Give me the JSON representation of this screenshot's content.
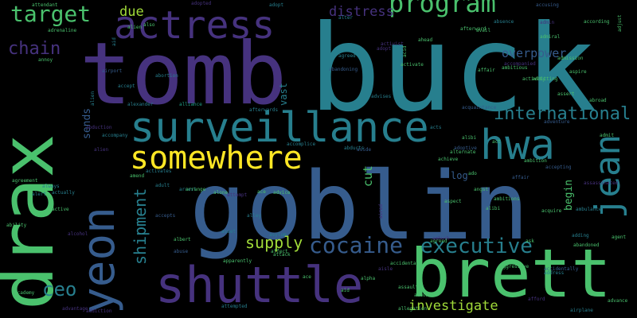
{
  "background": "#000000",
  "palette": [
    "#440154",
    "#46327e",
    "#365c8d",
    "#277f8e",
    "#1fa187",
    "#4ac16d",
    "#a0da39",
    "#fde725"
  ],
  "words": [
    {
      "text": "buck",
      "color": "#277f8e"
    },
    {
      "text": "tomb",
      "color": "#46327e"
    },
    {
      "text": "goblin",
      "color": "#365c8d"
    },
    {
      "text": "drax",
      "color": "#4ac16d"
    },
    {
      "text": "brett",
      "color": "#4ac16d"
    },
    {
      "text": "shuttle",
      "color": "#46327e"
    },
    {
      "text": "surveillance",
      "color": "#277f8e"
    },
    {
      "text": "yeon",
      "color": "#365c8d"
    },
    {
      "text": "actress",
      "color": "#46327e"
    },
    {
      "text": "hwa",
      "color": "#277f8e"
    },
    {
      "text": "jean",
      "color": "#277f8e"
    },
    {
      "text": "somewhere",
      "color": "#fde725"
    },
    {
      "text": "program",
      "color": "#4ac16d"
    },
    {
      "text": "target",
      "color": "#4ac16d"
    },
    {
      "text": "international",
      "color": "#277f8e"
    },
    {
      "text": "executive",
      "color": "#277f8e"
    },
    {
      "text": "cocaine",
      "color": "#365c8d"
    },
    {
      "text": "supply",
      "color": "#a0da39"
    },
    {
      "text": "chain",
      "color": "#46327e"
    },
    {
      "text": "ceo",
      "color": "#277f8e"
    },
    {
      "text": "shipment",
      "color": "#277f8e"
    },
    {
      "text": "investigate",
      "color": "#a0da39"
    },
    {
      "text": "overpower",
      "color": "#365c8d"
    },
    {
      "text": "distress",
      "color": "#46327e"
    },
    {
      "text": "due",
      "color": "#a0da39"
    },
    {
      "text": "cut",
      "color": "#4ac16d"
    },
    {
      "text": "sends",
      "color": "#365c8d"
    },
    {
      "text": "begin",
      "color": "#4ac16d"
    },
    {
      "text": "log",
      "color": "#365c8d"
    },
    {
      "text": "vast",
      "color": "#277f8e"
    },
    {
      "text": "alien",
      "color": "#277f8e"
    },
    {
      "text": "absence",
      "color": "#277f8e"
    },
    {
      "text": "ambulance",
      "color": "#277f8e"
    },
    {
      "text": "acquaintance",
      "color": "#365c8d"
    },
    {
      "text": "activates",
      "color": "#277f8e"
    },
    {
      "text": "afterwards",
      "color": "#277f8e"
    },
    {
      "text": "accompany",
      "color": "#277f8e"
    },
    {
      "text": "alliance",
      "color": "#1fa187"
    },
    {
      "text": "aggressive",
      "color": "#4ac16d"
    },
    {
      "text": "activist",
      "color": "#46327e"
    },
    {
      "text": "adopt",
      "color": "#277f8e"
    },
    {
      "text": "airport",
      "color": "#365c8d"
    },
    {
      "text": "advice",
      "color": "#4ac16d"
    },
    {
      "text": "agent",
      "color": "#4ac16d"
    },
    {
      "text": "academy",
      "color": "#4ac16d"
    },
    {
      "text": "acquire",
      "color": "#4ac16d"
    },
    {
      "text": "accusing",
      "color": "#365c8d"
    },
    {
      "text": "adopted",
      "color": "#46327e"
    },
    {
      "text": "achieve",
      "color": "#4ac16d"
    },
    {
      "text": "alpha",
      "color": "#4ac16d"
    },
    {
      "text": "advises",
      "color": "#277f8e"
    },
    {
      "text": "attack",
      "color": "#4ac16d"
    },
    {
      "text": "alone",
      "color": "#4ac16d"
    },
    {
      "text": "ahead",
      "color": "#4ac16d"
    },
    {
      "text": "abuse",
      "color": "#365c8d"
    },
    {
      "text": "activity",
      "color": "#4ac16d"
    },
    {
      "text": "alcohol",
      "color": "#46327e"
    },
    {
      "text": "admitting",
      "color": "#4ac16d"
    },
    {
      "text": "agreement",
      "color": "#4ac16d"
    },
    {
      "text": "ambition",
      "color": "#4ac16d"
    },
    {
      "text": "accepting",
      "color": "#365c8d"
    },
    {
      "text": "according",
      "color": "#4ac16d"
    },
    {
      "text": "abducts",
      "color": "#277f8e"
    },
    {
      "text": "alert",
      "color": "#277f8e"
    },
    {
      "text": "adding",
      "color": "#277f8e"
    },
    {
      "text": "address",
      "color": "#277f8e"
    },
    {
      "text": "alternate",
      "color": "#4ac16d"
    },
    {
      "text": "afford",
      "color": "#46327e"
    },
    {
      "text": "abandoning",
      "color": "#365c8d"
    },
    {
      "text": "activate",
      "color": "#4ac16d"
    },
    {
      "text": "aired",
      "color": "#46327e"
    },
    {
      "text": "adoptive",
      "color": "#365c8d"
    },
    {
      "text": "ace",
      "color": "#4ac16d"
    },
    {
      "text": "alien",
      "color": "#46327e"
    },
    {
      "text": "act",
      "color": "#4ac16d"
    },
    {
      "text": "alexander",
      "color": "#277f8e"
    },
    {
      "text": "accept",
      "color": "#277f8e"
    },
    {
      "text": "aid",
      "color": "#277f8e"
    },
    {
      "text": "aside",
      "color": "#365c8d"
    },
    {
      "text": "advance",
      "color": "#4ac16d"
    },
    {
      "text": "always",
      "color": "#277f8e"
    },
    {
      "text": "admit",
      "color": "#4ac16d"
    },
    {
      "text": "ability",
      "color": "#4ac16d"
    },
    {
      "text": "accompanied",
      "color": "#46327e"
    },
    {
      "text": "airplane",
      "color": "#277f8e"
    },
    {
      "text": "agreed",
      "color": "#277f8e"
    },
    {
      "text": "alibi",
      "color": "#4ac16d"
    },
    {
      "text": "alter",
      "color": "#277f8e"
    },
    {
      "text": "adult",
      "color": "#277f8e"
    },
    {
      "text": "alley",
      "color": "#277f8e"
    },
    {
      "text": "aspect",
      "color": "#4ac16d"
    },
    {
      "text": "acts",
      "color": "#277f8e"
    },
    {
      "text": "active",
      "color": "#4ac16d"
    },
    {
      "text": "asset",
      "color": "#277f8e"
    },
    {
      "text": "ambitious",
      "color": "#4ac16d"
    },
    {
      "text": "aisle",
      "color": "#46327e"
    },
    {
      "text": "accomplice",
      "color": "#277f8e"
    },
    {
      "text": "asylum",
      "color": "#277f8e"
    },
    {
      "text": "accepts",
      "color": "#365c8d"
    },
    {
      "text": "admin",
      "color": "#46327e"
    },
    {
      "text": "affair",
      "color": "#365c8d"
    },
    {
      "text": "actually",
      "color": "#277f8e"
    },
    {
      "text": "arrest",
      "color": "#277f8e"
    },
    {
      "text": "albert",
      "color": "#4ac16d"
    },
    {
      "text": "attempt",
      "color": "#46327e"
    },
    {
      "text": "adventure",
      "color": "#365c8d"
    },
    {
      "text": "acid",
      "color": "#4ac16d"
    },
    {
      "text": "assassinated",
      "color": "#46327e"
    },
    {
      "text": "ambush",
      "color": "#46327e"
    },
    {
      "text": "abortion",
      "color": "#277f8e"
    },
    {
      "text": "accidentally",
      "color": "#365c8d"
    },
    {
      "text": "addiction",
      "color": "#46327e"
    },
    {
      "text": "advantage",
      "color": "#46327e"
    },
    {
      "text": "abduction",
      "color": "#46327e"
    },
    {
      "text": "attempted",
      "color": "#277f8e"
    },
    {
      "text": "also",
      "color": "#4ac16d"
    },
    {
      "text": "affect",
      "color": "#4ac16d"
    },
    {
      "text": "afterward",
      "color": "#4ac16d"
    },
    {
      "text": "arrange",
      "color": "#4ac16d"
    },
    {
      "text": "amend",
      "color": "#4ac16d"
    },
    {
      "text": "admission",
      "color": "#4ac16d"
    },
    {
      "text": "avail",
      "color": "#4ac16d"
    },
    {
      "text": "annoy",
      "color": "#4ac16d"
    },
    {
      "text": "adopt",
      "color": "#46327e"
    },
    {
      "text": "attendant",
      "color": "#4ac16d"
    },
    {
      "text": "aspire",
      "color": "#4ac16d"
    },
    {
      "text": "alibi",
      "color": "#4ac16d"
    },
    {
      "text": "angst",
      "color": "#4ac16d"
    },
    {
      "text": "allegation",
      "color": "#4ac16d"
    },
    {
      "text": "aid",
      "color": "#4ac16d"
    },
    {
      "text": "accidental",
      "color": "#4ac16d"
    },
    {
      "text": "ambitions",
      "color": "#4ac16d"
    },
    {
      "text": "adjust",
      "color": "#4ac16d"
    },
    {
      "text": "admiral",
      "color": "#4ac16d"
    },
    {
      "text": "affair",
      "color": "#4ac16d"
    },
    {
      "text": "assaults",
      "color": "#4ac16d"
    },
    {
      "text": "allow",
      "color": "#4ac16d"
    },
    {
      "text": "assert",
      "color": "#4ac16d"
    },
    {
      "text": "abroad",
      "color": "#4ac16d"
    },
    {
      "text": "agreed",
      "color": "#4ac16d"
    },
    {
      "text": "adrenaline",
      "color": "#4ac16d"
    },
    {
      "text": "alien",
      "color": "#4ac16d"
    },
    {
      "text": "apparently",
      "color": "#4ac16d"
    },
    {
      "text": "ado",
      "color": "#4ac16d"
    },
    {
      "text": "ace",
      "color": "#4ac16d"
    },
    {
      "text": "ask",
      "color": "#4ac16d"
    },
    {
      "text": "abandoned",
      "color": "#4ac16d"
    }
  ]
}
